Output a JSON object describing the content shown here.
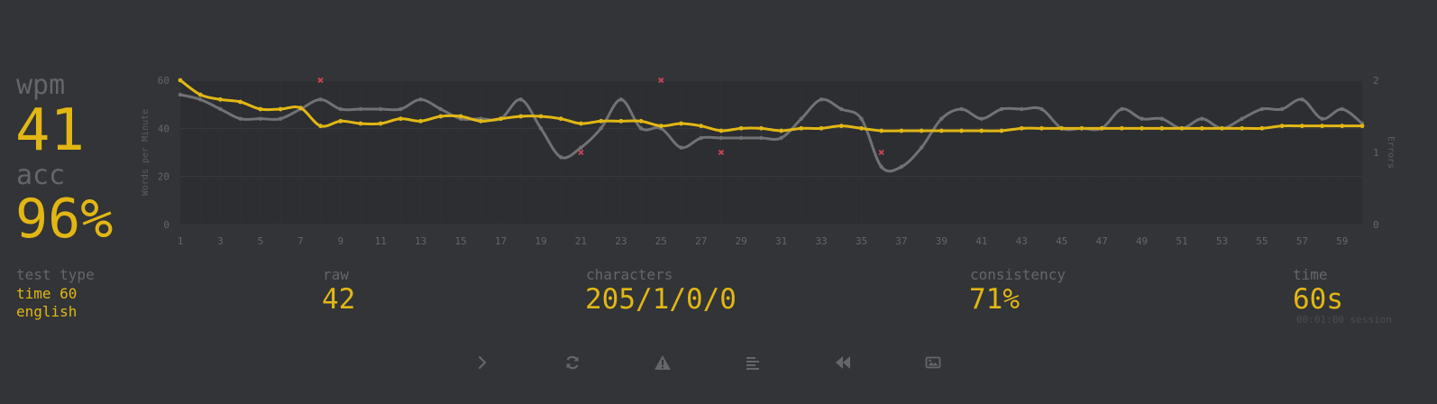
{
  "stats": {
    "wpm_label": "wpm",
    "wpm_value": "41",
    "acc_label": "acc",
    "acc_value": "96%"
  },
  "details": {
    "test_type_label": "test type",
    "test_type_mode": "time 60",
    "test_type_language": "english",
    "raw_label": "raw",
    "raw_value": "42",
    "characters_label": "characters",
    "characters_value": "205/1/0/0",
    "consistency_label": "consistency",
    "consistency_value": "71%",
    "time_label": "time",
    "time_value": "60s",
    "time_session": "00:01:00 session"
  },
  "buttons": [
    {
      "name": "next-test-button",
      "icon": "chevron-right-icon"
    },
    {
      "name": "restart-test-button",
      "icon": "refresh-icon"
    },
    {
      "name": "report-issue-button",
      "icon": "warning-icon"
    },
    {
      "name": "show-words-history-button",
      "icon": "align-left-icon"
    },
    {
      "name": "watch-replay-button",
      "icon": "backward-icon"
    },
    {
      "name": "save-screenshot-button",
      "icon": "image-icon"
    }
  ],
  "colors": {
    "background": "#323437",
    "accent": "#e2b714",
    "sub": "#646669",
    "raw_line": "#707274",
    "error": "#ca4754"
  },
  "chart_data": {
    "type": "line",
    "ylabel": "Words per Minute",
    "y2label": "Errors",
    "ylim": [
      0,
      60
    ],
    "y2lim": [
      0,
      2
    ],
    "yticks": [
      0,
      20,
      40,
      60
    ],
    "y2ticks": [
      0,
      1,
      2
    ],
    "x": [
      1,
      2,
      3,
      4,
      5,
      6,
      7,
      8,
      9,
      10,
      11,
      12,
      13,
      14,
      15,
      16,
      17,
      18,
      19,
      20,
      21,
      22,
      23,
      24,
      25,
      26,
      27,
      28,
      29,
      30,
      31,
      32,
      33,
      34,
      35,
      36,
      37,
      38,
      39,
      40,
      41,
      42,
      43,
      44,
      45,
      46,
      47,
      48,
      49,
      50,
      51,
      52,
      53,
      54,
      55,
      56,
      57,
      58,
      59,
      60
    ],
    "xticks": [
      1,
      3,
      5,
      7,
      9,
      11,
      13,
      15,
      17,
      19,
      21,
      23,
      25,
      27,
      29,
      31,
      33,
      35,
      37,
      39,
      41,
      43,
      45,
      47,
      49,
      51,
      53,
      55,
      57,
      59
    ],
    "grid": true,
    "series": [
      {
        "name": "wpm",
        "color": "#e2b714",
        "values": [
          60,
          54,
          52,
          51,
          48,
          48,
          48.5,
          41,
          43,
          42,
          42,
          44,
          43,
          45,
          45,
          43,
          44,
          45,
          45,
          44,
          42,
          43,
          43,
          43,
          41,
          42,
          41,
          39,
          40,
          40,
          39,
          40,
          40,
          41,
          40,
          39,
          39,
          39,
          39,
          39,
          39,
          39,
          40,
          40,
          40,
          40,
          40,
          40,
          40,
          40,
          40,
          40,
          40,
          40,
          40,
          41,
          41,
          41,
          41,
          41
        ]
      },
      {
        "name": "raw",
        "color": "#707274",
        "values": [
          54,
          52,
          48,
          44,
          44,
          44,
          48,
          52,
          48,
          48,
          48,
          48,
          52,
          48,
          44,
          44,
          44,
          52,
          40,
          28,
          32,
          40,
          52,
          40,
          40,
          32,
          36,
          36,
          36,
          36,
          36,
          44,
          52,
          48,
          44,
          24,
          24,
          32,
          44,
          48,
          44,
          48,
          48,
          48,
          40,
          40,
          40,
          48,
          44,
          44,
          40,
          44,
          40,
          44,
          48,
          48,
          52,
          44,
          48,
          42
        ]
      },
      {
        "name": "errors",
        "color": "#ca4754",
        "points": [
          [
            8,
            2
          ],
          [
            21,
            1
          ],
          [
            25,
            2
          ],
          [
            28,
            1
          ],
          [
            36,
            1
          ]
        ]
      }
    ]
  }
}
